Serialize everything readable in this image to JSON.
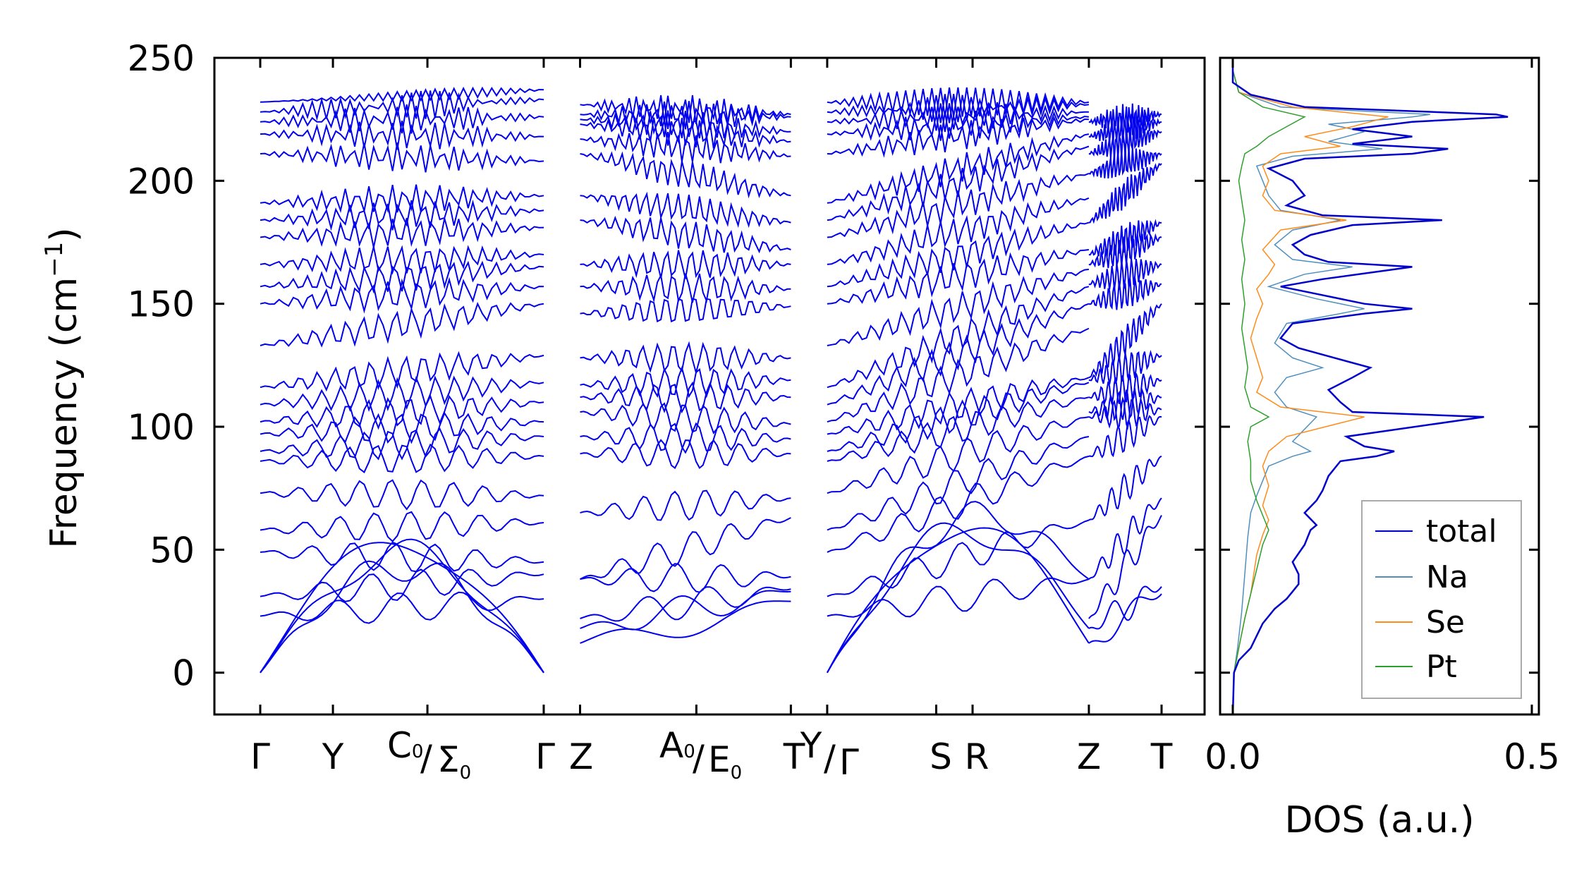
{
  "chart_data": [
    {
      "type": "line",
      "panel": "phonon-dispersion",
      "ylabel": "Frequency (cm",
      "ylabel_sup": "−1",
      "ylabel_close": ")",
      "ylim": [
        -17,
        250
      ],
      "yticks": [
        "250",
        "200",
        "150",
        "100",
        "50",
        "0"
      ],
      "yvalues": [
        250,
        200,
        150,
        100,
        50,
        0
      ],
      "x_path_labels": [
        {
          "label": "Γ",
          "x": 0
        },
        {
          "label": "Y",
          "x": 0.5
        },
        {
          "label": "C₀/Σ₀",
          "x": 1.15
        },
        {
          "label": "Γ",
          "x": 1.95
        },
        {
          "label": "Z",
          "x": 2.2
        },
        {
          "label": "A₀/E₀",
          "x": 3.0
        },
        {
          "label": "T",
          "x": 3.65
        },
        {
          "label": "Y/Γ",
          "x": 3.9
        },
        {
          "label": "S",
          "x": 4.65
        },
        {
          "label": "R",
          "x": 4.9
        },
        {
          "label": "Z",
          "x": 5.7
        },
        {
          "label": "T",
          "x": 6.2
        }
      ],
      "x_path_text": {
        "gamma1": "Γ",
        "y": "Y",
        "c0_main": "C",
        "c0_sub": "0",
        "sigma0_main": "Σ",
        "sigma0_sub": "0",
        "gamma2": "Γ",
        "z1": "Z",
        "a0_main": "A",
        "a0_sub": "0",
        "e0_main": "E",
        "e0_sub": "0",
        "t1": "T",
        "y2": "Y",
        "gamma3": "Γ",
        "s": "S",
        "r": "R",
        "z2": "Z",
        "t2": "T",
        "slash": "/"
      },
      "segments": [
        {
          "name": "Γ-Y-C₀/Σ₀-Γ",
          "x_range": [
            0,
            1.95
          ],
          "branch_start": [
            0,
            0,
            0,
            23,
            31,
            49,
            58,
            73,
            86,
            90,
            97,
            102,
            109,
            116,
            133,
            150,
            157,
            166,
            177,
            184,
            191,
            211,
            219,
            224,
            228,
            232
          ],
          "branch_end": [
            0,
            0,
            0,
            30,
            40,
            45,
            61,
            72,
            88,
            96,
            102,
            110,
            118,
            129,
            150,
            157,
            165,
            170,
            181,
            188,
            194,
            208,
            218,
            226,
            233,
            237
          ]
        },
        {
          "name": "Z-A₀/E₀-T",
          "x_range": [
            2.2,
            3.65
          ],
          "branch_start": [
            12,
            18,
            22,
            38,
            38,
            65,
            89,
            96,
            106,
            112,
            117,
            128,
            146,
            157,
            166,
            184,
            194,
            211,
            217,
            223,
            225,
            227,
            231
          ],
          "branch_end": [
            29,
            33,
            34,
            39,
            63,
            71,
            89,
            95,
            101,
            112,
            119,
            128,
            149,
            156,
            166,
            172,
            183,
            194,
            210,
            216,
            220,
            226,
            227
          ]
        },
        {
          "name": "Y/Γ-S-R-Z",
          "x_range": [
            3.9,
            5.7
          ],
          "branch_start": [
            0,
            0,
            0,
            23,
            31,
            49,
            58,
            73,
            86,
            90,
            97,
            102,
            109,
            116,
            133,
            150,
            157,
            166,
            177,
            184,
            191,
            211,
            219,
            224,
            228,
            232
          ],
          "branch_end": [
            12,
            18,
            38,
            38,
            62,
            88,
            96,
            104,
            112,
            118,
            120,
            140,
            150,
            157,
            164,
            172,
            183,
            193,
            203,
            214,
            219,
            225,
            226,
            228,
            231,
            232
          ]
        },
        {
          "name": "Z-T",
          "x_range": [
            5.7,
            6.2
          ],
          "branch_start": [
            12,
            18,
            22,
            38,
            62,
            88,
            104,
            106,
            112,
            119,
            120,
            150,
            158,
            166,
            170,
            183,
            203,
            211,
            218,
            224
          ],
          "branch_end": [
            32,
            35,
            64,
            71,
            88,
            104,
            107,
            112,
            119,
            129,
            150,
            158,
            166,
            177,
            183,
            207,
            211,
            220,
            224,
            227
          ]
        }
      ],
      "color": "#0000ee"
    },
    {
      "type": "line",
      "panel": "density-of-states",
      "xlabel": "DOS (a.u.)",
      "xlim": [
        0,
        0.5
      ],
      "xticks": [
        "0.0",
        "0.5"
      ],
      "xvalues": [
        0,
        0.5
      ],
      "ylim": [
        -17,
        250
      ],
      "legend_position": "lower-right",
      "series": [
        {
          "name": "total",
          "color": "#0000cc",
          "points": [
            [
              0,
              -17
            ],
            [
              0.002,
              0
            ],
            [
              0.01,
              5
            ],
            [
              0.03,
              10
            ],
            [
              0.05,
              20
            ],
            [
              0.07,
              26
            ],
            [
              0.09,
              30
            ],
            [
              0.1,
              33
            ],
            [
              0.11,
              36
            ],
            [
              0.11,
              40
            ],
            [
              0.1,
              45
            ],
            [
              0.12,
              52
            ],
            [
              0.13,
              58
            ],
            [
              0.14,
              60
            ],
            [
              0.12,
              65
            ],
            [
              0.14,
              70
            ],
            [
              0.15,
              74
            ],
            [
              0.16,
              80
            ],
            [
              0.18,
              86
            ],
            [
              0.24,
              88
            ],
            [
              0.27,
              90
            ],
            [
              0.22,
              92
            ],
            [
              0.19,
              96
            ],
            [
              0.42,
              104
            ],
            [
              0.2,
              106
            ],
            [
              0.18,
              110
            ],
            [
              0.16,
              115
            ],
            [
              0.2,
              120
            ],
            [
              0.23,
              124
            ],
            [
              0.17,
              128
            ],
            [
              0.11,
              132
            ],
            [
              0.08,
              136
            ],
            [
              0.1,
              142
            ],
            [
              0.22,
              146
            ],
            [
              0.3,
              148
            ],
            [
              0.22,
              150
            ],
            [
              0.14,
              154
            ],
            [
              0.08,
              157
            ],
            [
              0.15,
              160
            ],
            [
              0.3,
              165
            ],
            [
              0.16,
              167
            ],
            [
              0.12,
              170
            ],
            [
              0.1,
              174
            ],
            [
              0.13,
              178
            ],
            [
              0.2,
              182
            ],
            [
              0.35,
              184
            ],
            [
              0.15,
              186
            ],
            [
              0.09,
              190
            ],
            [
              0.12,
              194
            ],
            [
              0.1,
              200
            ],
            [
              0.06,
              205
            ],
            [
              0.12,
              209
            ],
            [
              0.3,
              211
            ],
            [
              0.36,
              213
            ],
            [
              0.2,
              215
            ],
            [
              0.3,
              218
            ],
            [
              0.2,
              221
            ],
            [
              0.3,
              224
            ],
            [
              0.46,
              226
            ],
            [
              0.44,
              227
            ],
            [
              0.12,
              230
            ],
            [
              0.03,
              235
            ],
            [
              0,
              240
            ],
            [
              0,
              250
            ]
          ]
        },
        {
          "name": "Na",
          "color": "#4f8fbf",
          "points": [
            [
              0,
              -17
            ],
            [
              0.002,
              0
            ],
            [
              0.008,
              10
            ],
            [
              0.015,
              25
            ],
            [
              0.02,
              40
            ],
            [
              0.025,
              55
            ],
            [
              0.03,
              65
            ],
            [
              0.04,
              72
            ],
            [
              0.05,
              78
            ],
            [
              0.06,
              84
            ],
            [
              0.1,
              88
            ],
            [
              0.13,
              90
            ],
            [
              0.1,
              94
            ],
            [
              0.14,
              104
            ],
            [
              0.09,
              108
            ],
            [
              0.07,
              114
            ],
            [
              0.09,
              120
            ],
            [
              0.15,
              124
            ],
            [
              0.1,
              128
            ],
            [
              0.07,
              134
            ],
            [
              0.09,
              142
            ],
            [
              0.18,
              146
            ],
            [
              0.22,
              148
            ],
            [
              0.14,
              152
            ],
            [
              0.06,
              157
            ],
            [
              0.12,
              162
            ],
            [
              0.2,
              165
            ],
            [
              0.1,
              168
            ],
            [
              0.07,
              174
            ],
            [
              0.1,
              180
            ],
            [
              0.18,
              184
            ],
            [
              0.08,
              188
            ],
            [
              0.06,
              194
            ],
            [
              0.05,
              200
            ],
            [
              0.04,
              206
            ],
            [
              0.1,
              210
            ],
            [
              0.25,
              213
            ],
            [
              0.16,
              216
            ],
            [
              0.22,
              220
            ],
            [
              0.16,
              223
            ],
            [
              0.3,
              226
            ],
            [
              0.33,
              227
            ],
            [
              0.08,
              230
            ],
            [
              0.01,
              236
            ],
            [
              0,
              245
            ]
          ]
        },
        {
          "name": "Se",
          "color": "#ff8c1a",
          "points": [
            [
              0,
              -17
            ],
            [
              0.002,
              0
            ],
            [
              0.01,
              10
            ],
            [
              0.02,
              22
            ],
            [
              0.03,
              32
            ],
            [
              0.035,
              40
            ],
            [
              0.04,
              48
            ],
            [
              0.05,
              56
            ],
            [
              0.06,
              62
            ],
            [
              0.05,
              68
            ],
            [
              0.06,
              76
            ],
            [
              0.05,
              84
            ],
            [
              0.06,
              90
            ],
            [
              0.09,
              96
            ],
            [
              0.22,
              104
            ],
            [
              0.08,
              108
            ],
            [
              0.04,
              114
            ],
            [
              0.05,
              120
            ],
            [
              0.04,
              128
            ],
            [
              0.03,
              136
            ],
            [
              0.04,
              144
            ],
            [
              0.05,
              150
            ],
            [
              0.04,
              156
            ],
            [
              0.06,
              162
            ],
            [
              0.07,
              166
            ],
            [
              0.05,
              172
            ],
            [
              0.08,
              180
            ],
            [
              0.19,
              184
            ],
            [
              0.07,
              188
            ],
            [
              0.05,
              194
            ],
            [
              0.06,
              200
            ],
            [
              0.05,
              206
            ],
            [
              0.08,
              211
            ],
            [
              0.18,
              214
            ],
            [
              0.12,
              218
            ],
            [
              0.2,
              222
            ],
            [
              0.26,
              226
            ],
            [
              0.1,
              230
            ],
            [
              0.01,
              236
            ],
            [
              0,
              245
            ]
          ]
        },
        {
          "name": "Pt",
          "color": "#2ca02c",
          "points": [
            [
              0,
              -17
            ],
            [
              0.002,
              0
            ],
            [
              0.01,
              10
            ],
            [
              0.02,
              22
            ],
            [
              0.03,
              32
            ],
            [
              0.04,
              42
            ],
            [
              0.05,
              52
            ],
            [
              0.06,
              58
            ],
            [
              0.05,
              64
            ],
            [
              0.04,
              70
            ],
            [
              0.03,
              78
            ],
            [
              0.03,
              86
            ],
            [
              0.025,
              94
            ],
            [
              0.03,
              100
            ],
            [
              0.06,
              104
            ],
            [
              0.03,
              108
            ],
            [
              0.02,
              116
            ],
            [
              0.025,
              124
            ],
            [
              0.02,
              132
            ],
            [
              0.015,
              140
            ],
            [
              0.02,
              150
            ],
            [
              0.015,
              160
            ],
            [
              0.02,
              168
            ],
            [
              0.015,
              176
            ],
            [
              0.02,
              184
            ],
            [
              0.015,
              192
            ],
            [
              0.01,
              200
            ],
            [
              0.015,
              206
            ],
            [
              0.02,
              211
            ],
            [
              0.04,
              214
            ],
            [
              0.06,
              218
            ],
            [
              0.09,
              222
            ],
            [
              0.12,
              226
            ],
            [
              0.05,
              230
            ],
            [
              0.01,
              236
            ],
            [
              0,
              245
            ]
          ]
        }
      ]
    }
  ]
}
